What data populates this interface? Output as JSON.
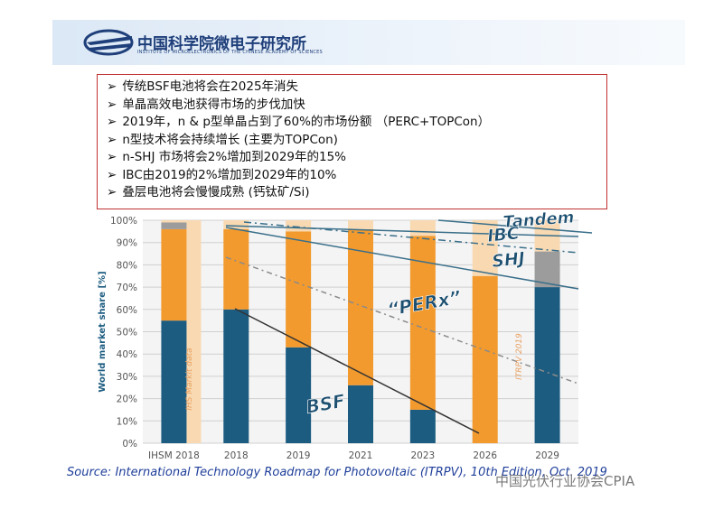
{
  "header": {
    "title": "中国科学院微电子研究所",
    "subtitle": "INSTITUTE OF MICROELECTRONICS OF THE CHINESE ACADEMY OF SCIENCES"
  },
  "bullets": [
    "传统BSF电池将会在2025年消失",
    "单晶高效电池获得市场的步伐加快",
    "2019年，n & p型单晶占到了60%的市场份额 （PERC+TOPCon）",
    "n型技术将会持续增长 (主要为TOPCon)",
    "n-SHJ 市场将会2%增加到2029年的15%",
    "IBC由2019的2%增加到2029年的10%",
    "叠层电池将会慢慢成熟 (钙钛矿/Si)"
  ],
  "chart_data": {
    "type": "stacked_bar",
    "y_label": "World market share [%]",
    "categories": [
      "IHSM 2018",
      "2018",
      "2019",
      "2021",
      "2023",
      "2026",
      "2029"
    ],
    "series": [
      {
        "color": "#1c5c80",
        "values": [
          55,
          60,
          43,
          26,
          15,
          0,
          70
        ]
      },
      {
        "color": "#f29a2e",
        "values": [
          41,
          36,
          52,
          70,
          78,
          75,
          0
        ]
      },
      {
        "color": "#9c9c9c",
        "values": [
          3,
          0,
          0,
          0,
          0,
          0,
          16
        ]
      },
      {
        "color": "#f8d9b2",
        "values": [
          1,
          4,
          5,
          4,
          7,
          25,
          14
        ]
      }
    ],
    "ylim": [
      0,
      100
    ],
    "yticks": [
      {
        "value": 0,
        "label": "0%"
      },
      {
        "value": 10,
        "label": "10%"
      },
      {
        "value": 20,
        "label": "20%"
      },
      {
        "value": 30,
        "label": "30%"
      },
      {
        "value": 40,
        "label": "40%"
      },
      {
        "value": 50,
        "label": "50%"
      },
      {
        "value": 60,
        "label": "60%"
      },
      {
        "value": 70,
        "label": "70%"
      },
      {
        "value": 80,
        "label": "80%"
      },
      {
        "value": 90,
        "label": "90%"
      },
      {
        "value": 100,
        "label": "100%"
      }
    ],
    "grid": true,
    "annotations": [
      "BSF",
      "“PERx”",
      "SHJ",
      "IBC",
      "Tandem",
      "IHS Markit data",
      "ITRPV 2019"
    ]
  },
  "source": "Source: International Technology Roadmap for Photovoltaic (ITRPV), 10th Edition, Oct. 2019",
  "watermark": "中国光伏行业协会CPIA"
}
